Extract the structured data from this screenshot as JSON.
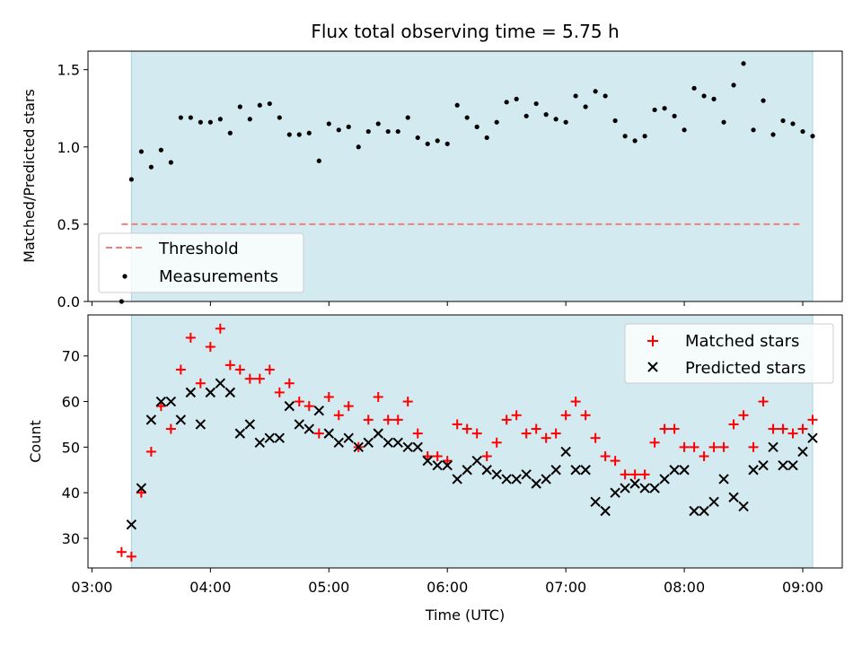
{
  "chart_data": [
    {
      "type": "scatter",
      "title": "Flux total observing time = 5.75 h",
      "xlabel": "",
      "ylabel": "Matched/Predicted stars",
      "ylim": [
        0,
        1.62
      ],
      "yticks": [
        0.0,
        0.5,
        1.0,
        1.5
      ],
      "ytick_labels": [
        "0.0",
        "0.5",
        "1.0",
        "1.5"
      ],
      "xlim": [
        "02:58",
        "09:20"
      ],
      "shaded_span": [
        "03:20",
        "09:05"
      ],
      "shade_color": "#d3eaf1",
      "threshold": 0.5,
      "threshold_range": [
        "03:15",
        "09:00"
      ],
      "threshold_color": "#f08080",
      "legend": {
        "position": "lower-left",
        "entries": [
          "Threshold",
          "Measurements"
        ]
      },
      "series": [
        {
          "name": "Measurements",
          "marker": "dot",
          "color": "#000000",
          "points": [
            [
              "03:15",
              0.0
            ],
            [
              "03:20",
              0.79
            ],
            [
              "03:25",
              0.97
            ],
            [
              "03:30",
              0.87
            ],
            [
              "03:35",
              0.98
            ],
            [
              "03:40",
              0.9
            ],
            [
              "03:45",
              1.19
            ],
            [
              "03:50",
              1.19
            ],
            [
              "03:55",
              1.16
            ],
            [
              "04:00",
              1.16
            ],
            [
              "04:05",
              1.18
            ],
            [
              "04:10",
              1.09
            ],
            [
              "04:15",
              1.26
            ],
            [
              "04:20",
              1.18
            ],
            [
              "04:25",
              1.27
            ],
            [
              "04:30",
              1.28
            ],
            [
              "04:35",
              1.19
            ],
            [
              "04:40",
              1.08
            ],
            [
              "04:45",
              1.08
            ],
            [
              "04:50",
              1.09
            ],
            [
              "04:55",
              0.91
            ],
            [
              "05:00",
              1.15
            ],
            [
              "05:05",
              1.11
            ],
            [
              "05:10",
              1.13
            ],
            [
              "05:15",
              1.0
            ],
            [
              "05:20",
              1.1
            ],
            [
              "05:25",
              1.15
            ],
            [
              "05:30",
              1.1
            ],
            [
              "05:35",
              1.1
            ],
            [
              "05:40",
              1.19
            ],
            [
              "05:45",
              1.06
            ],
            [
              "05:50",
              1.02
            ],
            [
              "05:55",
              1.04
            ],
            [
              "06:00",
              1.02
            ],
            [
              "06:05",
              1.27
            ],
            [
              "06:10",
              1.19
            ],
            [
              "06:15",
              1.13
            ],
            [
              "06:20",
              1.06
            ],
            [
              "06:25",
              1.16
            ],
            [
              "06:30",
              1.29
            ],
            [
              "06:35",
              1.31
            ],
            [
              "06:40",
              1.2
            ],
            [
              "06:45",
              1.28
            ],
            [
              "06:50",
              1.21
            ],
            [
              "06:55",
              1.18
            ],
            [
              "07:00",
              1.16
            ],
            [
              "07:05",
              1.33
            ],
            [
              "07:10",
              1.26
            ],
            [
              "07:15",
              1.36
            ],
            [
              "07:20",
              1.33
            ],
            [
              "07:25",
              1.17
            ],
            [
              "07:30",
              1.07
            ],
            [
              "07:35",
              1.04
            ],
            [
              "07:40",
              1.07
            ],
            [
              "07:45",
              1.24
            ],
            [
              "07:50",
              1.25
            ],
            [
              "07:55",
              1.2
            ],
            [
              "08:00",
              1.11
            ],
            [
              "08:05",
              1.38
            ],
            [
              "08:10",
              1.33
            ],
            [
              "08:15",
              1.31
            ],
            [
              "08:20",
              1.16
            ],
            [
              "08:25",
              1.4
            ],
            [
              "08:30",
              1.54
            ],
            [
              "08:35",
              1.11
            ],
            [
              "08:40",
              1.3
            ],
            [
              "08:45",
              1.08
            ],
            [
              "08:50",
              1.17
            ],
            [
              "08:55",
              1.15
            ],
            [
              "09:00",
              1.1
            ],
            [
              "09:05",
              1.07
            ]
          ]
        }
      ]
    },
    {
      "type": "scatter",
      "title": "",
      "xlabel": "Time (UTC)",
      "ylabel": "Count",
      "ylim": [
        23.5,
        79
      ],
      "yticks": [
        30,
        40,
        50,
        60,
        70
      ],
      "ytick_labels": [
        "30",
        "40",
        "50",
        "60",
        "70"
      ],
      "xlim": [
        "02:58",
        "09:20"
      ],
      "xticks": [
        "03:00",
        "04:00",
        "05:00",
        "06:00",
        "07:00",
        "08:00",
        "09:00"
      ],
      "xtick_labels": [
        "03:00",
        "04:00",
        "05:00",
        "06:00",
        "07:00",
        "08:00",
        "09:00"
      ],
      "shaded_span": [
        "03:20",
        "09:05"
      ],
      "shade_color": "#d3eaf1",
      "legend": {
        "position": "upper-right",
        "entries": [
          "Matched stars",
          "Predicted stars"
        ]
      },
      "series": [
        {
          "name": "Matched stars",
          "marker": "plus",
          "color": "#ff0000",
          "points": [
            [
              "03:15",
              27
            ],
            [
              "03:20",
              26
            ],
            [
              "03:25",
              40
            ],
            [
              "03:30",
              49
            ],
            [
              "03:35",
              59
            ],
            [
              "03:40",
              54
            ],
            [
              "03:45",
              67
            ],
            [
              "03:50",
              74
            ],
            [
              "03:55",
              64
            ],
            [
              "04:00",
              72
            ],
            [
              "04:05",
              76
            ],
            [
              "04:10",
              68
            ],
            [
              "04:15",
              67
            ],
            [
              "04:20",
              65
            ],
            [
              "04:25",
              65
            ],
            [
              "04:30",
              67
            ],
            [
              "04:35",
              62
            ],
            [
              "04:40",
              64
            ],
            [
              "04:45",
              60
            ],
            [
              "04:50",
              59
            ],
            [
              "04:55",
              53
            ],
            [
              "05:00",
              61
            ],
            [
              "05:05",
              57
            ],
            [
              "05:10",
              59
            ],
            [
              "05:15",
              50
            ],
            [
              "05:20",
              56
            ],
            [
              "05:25",
              61
            ],
            [
              "05:30",
              56
            ],
            [
              "05:35",
              56
            ],
            [
              "05:40",
              60
            ],
            [
              "05:45",
              53
            ],
            [
              "05:50",
              48
            ],
            [
              "05:55",
              48
            ],
            [
              "06:00",
              47
            ],
            [
              "06:05",
              55
            ],
            [
              "06:10",
              54
            ],
            [
              "06:15",
              53
            ],
            [
              "06:20",
              48
            ],
            [
              "06:25",
              51
            ],
            [
              "06:30",
              56
            ],
            [
              "06:35",
              57
            ],
            [
              "06:40",
              53
            ],
            [
              "06:45",
              54
            ],
            [
              "06:50",
              52
            ],
            [
              "06:55",
              53
            ],
            [
              "07:00",
              57
            ],
            [
              "07:05",
              60
            ],
            [
              "07:10",
              57
            ],
            [
              "07:15",
              52
            ],
            [
              "07:20",
              48
            ],
            [
              "07:25",
              47
            ],
            [
              "07:30",
              44
            ],
            [
              "07:35",
              44
            ],
            [
              "07:40",
              44
            ],
            [
              "07:45",
              51
            ],
            [
              "07:50",
              54
            ],
            [
              "07:55",
              54
            ],
            [
              "08:00",
              50
            ],
            [
              "08:05",
              50
            ],
            [
              "08:10",
              48
            ],
            [
              "08:15",
              50
            ],
            [
              "08:20",
              50
            ],
            [
              "08:25",
              55
            ],
            [
              "08:30",
              57
            ],
            [
              "08:35",
              50
            ],
            [
              "08:40",
              60
            ],
            [
              "08:45",
              54
            ],
            [
              "08:50",
              54
            ],
            [
              "08:55",
              53
            ],
            [
              "09:00",
              54
            ],
            [
              "09:05",
              56
            ]
          ]
        },
        {
          "name": "Predicted stars",
          "marker": "x",
          "color": "#000000",
          "points": [
            [
              "03:20",
              33
            ],
            [
              "03:25",
              41
            ],
            [
              "03:30",
              56
            ],
            [
              "03:35",
              60
            ],
            [
              "03:40",
              60
            ],
            [
              "03:45",
              56
            ],
            [
              "03:50",
              62
            ],
            [
              "03:55",
              55
            ],
            [
              "04:00",
              62
            ],
            [
              "04:05",
              64
            ],
            [
              "04:10",
              62
            ],
            [
              "04:15",
              53
            ],
            [
              "04:20",
              55
            ],
            [
              "04:25",
              51
            ],
            [
              "04:30",
              52
            ],
            [
              "04:35",
              52
            ],
            [
              "04:40",
              59
            ],
            [
              "04:45",
              55
            ],
            [
              "04:50",
              54
            ],
            [
              "04:55",
              58
            ],
            [
              "05:00",
              53
            ],
            [
              "05:05",
              51
            ],
            [
              "05:10",
              52
            ],
            [
              "05:15",
              50
            ],
            [
              "05:20",
              51
            ],
            [
              "05:25",
              53
            ],
            [
              "05:30",
              51
            ],
            [
              "05:35",
              51
            ],
            [
              "05:40",
              50
            ],
            [
              "05:45",
              50
            ],
            [
              "05:50",
              47
            ],
            [
              "05:55",
              46
            ],
            [
              "06:00",
              46
            ],
            [
              "06:05",
              43
            ],
            [
              "06:10",
              45
            ],
            [
              "06:15",
              47
            ],
            [
              "06:20",
              45
            ],
            [
              "06:25",
              44
            ],
            [
              "06:30",
              43
            ],
            [
              "06:35",
              43
            ],
            [
              "06:40",
              44
            ],
            [
              "06:45",
              42
            ],
            [
              "06:50",
              43
            ],
            [
              "06:55",
              45
            ],
            [
              "07:00",
              49
            ],
            [
              "07:05",
              45
            ],
            [
              "07:10",
              45
            ],
            [
              "07:15",
              38
            ],
            [
              "07:20",
              36
            ],
            [
              "07:25",
              40
            ],
            [
              "07:30",
              41
            ],
            [
              "07:35",
              42
            ],
            [
              "07:40",
              41
            ],
            [
              "07:45",
              41
            ],
            [
              "07:50",
              43
            ],
            [
              "07:55",
              45
            ],
            [
              "08:00",
              45
            ],
            [
              "08:05",
              36
            ],
            [
              "08:10",
              36
            ],
            [
              "08:15",
              38
            ],
            [
              "08:20",
              43
            ],
            [
              "08:25",
              39
            ],
            [
              "08:30",
              37
            ],
            [
              "08:35",
              45
            ],
            [
              "08:40",
              46
            ],
            [
              "08:45",
              50
            ],
            [
              "08:50",
              46
            ],
            [
              "08:55",
              46
            ],
            [
              "09:00",
              49
            ],
            [
              "09:05",
              52
            ]
          ]
        }
      ]
    }
  ]
}
